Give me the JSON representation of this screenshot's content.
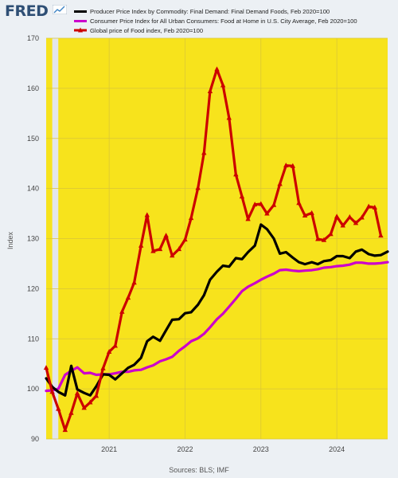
{
  "header": {
    "logo_text": "FRED",
    "logo_icon": "trend-line-icon"
  },
  "chart_data": {
    "type": "line",
    "ylabel": "Index",
    "xlabel": "",
    "ylim": [
      90,
      170
    ],
    "xlim": [
      2020.17,
      2024.67
    ],
    "y_ticks": [
      90,
      100,
      110,
      120,
      130,
      140,
      150,
      160,
      170
    ],
    "x_ticks": [
      {
        "label": "2021",
        "value": 2021.0
      },
      {
        "label": "2022",
        "value": 2022.0
      },
      {
        "label": "2023",
        "value": 2023.0
      },
      {
        "label": "2024",
        "value": 2024.0
      }
    ],
    "plot_background": "#f7e31c",
    "recession_shading": [
      [
        2020.17,
        2020.25
      ],
      [
        2020.25,
        2020.33
      ]
    ],
    "grid": true,
    "legend_position": "top",
    "source": "Sources: BLS; IMF",
    "series": [
      {
        "name": "Producer Price Index by Commodity: Final Demand: Final Demand Foods, Feb 2020=100",
        "color": "#000000",
        "marker": "none",
        "points": [
          [
            2020.17,
            102.1
          ],
          [
            2020.25,
            100.4
          ],
          [
            2020.33,
            99.4
          ],
          [
            2020.42,
            98.7
          ],
          [
            2020.5,
            104.6
          ],
          [
            2020.58,
            99.9
          ],
          [
            2020.67,
            99.2
          ],
          [
            2020.75,
            98.7
          ],
          [
            2020.83,
            100.5
          ],
          [
            2020.92,
            102.9
          ],
          [
            2021.0,
            102.8
          ],
          [
            2021.08,
            101.9
          ],
          [
            2021.17,
            103.1
          ],
          [
            2021.25,
            104.2
          ],
          [
            2021.33,
            104.8
          ],
          [
            2021.42,
            106.2
          ],
          [
            2021.5,
            109.5
          ],
          [
            2021.58,
            110.4
          ],
          [
            2021.67,
            109.6
          ],
          [
            2021.75,
            111.7
          ],
          [
            2021.83,
            113.8
          ],
          [
            2021.92,
            113.9
          ],
          [
            2022.0,
            115.1
          ],
          [
            2022.08,
            115.3
          ],
          [
            2022.17,
            116.8
          ],
          [
            2022.25,
            118.7
          ],
          [
            2022.33,
            121.8
          ],
          [
            2022.42,
            123.4
          ],
          [
            2022.5,
            124.6
          ],
          [
            2022.58,
            124.4
          ],
          [
            2022.67,
            126.1
          ],
          [
            2022.75,
            125.9
          ],
          [
            2022.83,
            127.3
          ],
          [
            2022.92,
            128.6
          ],
          [
            2023.0,
            132.8
          ],
          [
            2023.08,
            131.9
          ],
          [
            2023.17,
            130.0
          ],
          [
            2023.25,
            127.0
          ],
          [
            2023.33,
            127.3
          ],
          [
            2023.42,
            126.2
          ],
          [
            2023.5,
            125.3
          ],
          [
            2023.58,
            124.9
          ],
          [
            2023.67,
            125.3
          ],
          [
            2023.75,
            124.9
          ],
          [
            2023.83,
            125.5
          ],
          [
            2023.92,
            125.7
          ],
          [
            2024.0,
            126.5
          ],
          [
            2024.08,
            126.5
          ],
          [
            2024.17,
            126.1
          ],
          [
            2024.25,
            127.4
          ],
          [
            2024.33,
            127.8
          ],
          [
            2024.42,
            126.9
          ],
          [
            2024.5,
            126.6
          ],
          [
            2024.58,
            126.7
          ],
          [
            2024.67,
            127.4
          ]
        ]
      },
      {
        "name": "Consumer Price Index for All Urban Consumers: Food at Home in U.S. City Average, Feb 2020=100",
        "color": "#cc00cc",
        "marker": "none",
        "points": [
          [
            2020.17,
            99.6
          ],
          [
            2020.25,
            99.7
          ],
          [
            2020.33,
            100.0
          ],
          [
            2020.42,
            102.8
          ],
          [
            2020.5,
            103.6
          ],
          [
            2020.58,
            104.3
          ],
          [
            2020.67,
            103.1
          ],
          [
            2020.75,
            103.2
          ],
          [
            2020.83,
            102.8
          ],
          [
            2020.92,
            102.9
          ],
          [
            2021.0,
            102.9
          ],
          [
            2021.08,
            103.1
          ],
          [
            2021.17,
            103.4
          ],
          [
            2021.25,
            103.4
          ],
          [
            2021.33,
            103.7
          ],
          [
            2021.42,
            103.8
          ],
          [
            2021.5,
            104.3
          ],
          [
            2021.58,
            104.7
          ],
          [
            2021.67,
            105.5
          ],
          [
            2021.75,
            105.9
          ],
          [
            2021.83,
            106.4
          ],
          [
            2021.92,
            107.6
          ],
          [
            2022.0,
            108.5
          ],
          [
            2022.08,
            109.5
          ],
          [
            2022.17,
            110.1
          ],
          [
            2022.25,
            111.0
          ],
          [
            2022.33,
            112.3
          ],
          [
            2022.42,
            113.9
          ],
          [
            2022.5,
            115.0
          ],
          [
            2022.58,
            116.4
          ],
          [
            2022.67,
            118.0
          ],
          [
            2022.75,
            119.5
          ],
          [
            2022.83,
            120.4
          ],
          [
            2022.92,
            121.1
          ],
          [
            2023.0,
            121.8
          ],
          [
            2023.08,
            122.4
          ],
          [
            2023.17,
            123.0
          ],
          [
            2023.25,
            123.7
          ],
          [
            2023.33,
            123.8
          ],
          [
            2023.42,
            123.6
          ],
          [
            2023.5,
            123.5
          ],
          [
            2023.58,
            123.6
          ],
          [
            2023.67,
            123.7
          ],
          [
            2023.75,
            123.9
          ],
          [
            2023.83,
            124.2
          ],
          [
            2023.92,
            124.3
          ],
          [
            2024.0,
            124.5
          ],
          [
            2024.08,
            124.6
          ],
          [
            2024.17,
            124.8
          ],
          [
            2024.25,
            125.2
          ],
          [
            2024.33,
            125.2
          ],
          [
            2024.42,
            125.0
          ],
          [
            2024.5,
            125.0
          ],
          [
            2024.58,
            125.1
          ],
          [
            2024.67,
            125.3
          ]
        ]
      },
      {
        "name": "Global price of Food index, Feb 2020=100",
        "color": "#cc0000",
        "marker": "triangle",
        "points": [
          [
            2020.17,
            104.2
          ],
          [
            2020.25,
            99.4
          ],
          [
            2020.33,
            96.0
          ],
          [
            2020.42,
            91.8
          ],
          [
            2020.5,
            95.2
          ],
          [
            2020.58,
            99.1
          ],
          [
            2020.67,
            96.2
          ],
          [
            2020.75,
            97.3
          ],
          [
            2020.83,
            98.6
          ],
          [
            2020.92,
            104.1
          ],
          [
            2021.0,
            107.4
          ],
          [
            2021.08,
            108.6
          ],
          [
            2021.17,
            115.4
          ],
          [
            2021.25,
            118.2
          ],
          [
            2021.33,
            121.2
          ],
          [
            2021.42,
            128.6
          ],
          [
            2021.5,
            134.7
          ],
          [
            2021.58,
            127.5
          ],
          [
            2021.67,
            127.9
          ],
          [
            2021.75,
            130.6
          ],
          [
            2021.83,
            126.6
          ],
          [
            2021.92,
            127.9
          ],
          [
            2022.0,
            129.8
          ],
          [
            2022.08,
            134.1
          ],
          [
            2022.17,
            140.1
          ],
          [
            2022.25,
            147.1
          ],
          [
            2022.33,
            159.4
          ],
          [
            2022.42,
            163.8
          ],
          [
            2022.5,
            160.6
          ],
          [
            2022.58,
            154.1
          ],
          [
            2022.67,
            142.8
          ],
          [
            2022.75,
            138.4
          ],
          [
            2022.83,
            133.9
          ],
          [
            2022.92,
            136.8
          ],
          [
            2023.0,
            136.9
          ],
          [
            2023.08,
            135.0
          ],
          [
            2023.17,
            136.7
          ],
          [
            2023.25,
            140.9
          ],
          [
            2023.33,
            144.6
          ],
          [
            2023.42,
            144.5
          ],
          [
            2023.5,
            137.1
          ],
          [
            2023.58,
            134.6
          ],
          [
            2023.67,
            135.1
          ],
          [
            2023.75,
            129.9
          ],
          [
            2023.83,
            129.7
          ],
          [
            2023.92,
            130.9
          ],
          [
            2024.0,
            134.4
          ],
          [
            2024.08,
            132.6
          ],
          [
            2024.17,
            134.3
          ],
          [
            2024.25,
            133.1
          ],
          [
            2024.33,
            134.2
          ],
          [
            2024.42,
            136.4
          ],
          [
            2024.5,
            136.2
          ],
          [
            2024.58,
            130.6
          ]
        ]
      }
    ]
  }
}
